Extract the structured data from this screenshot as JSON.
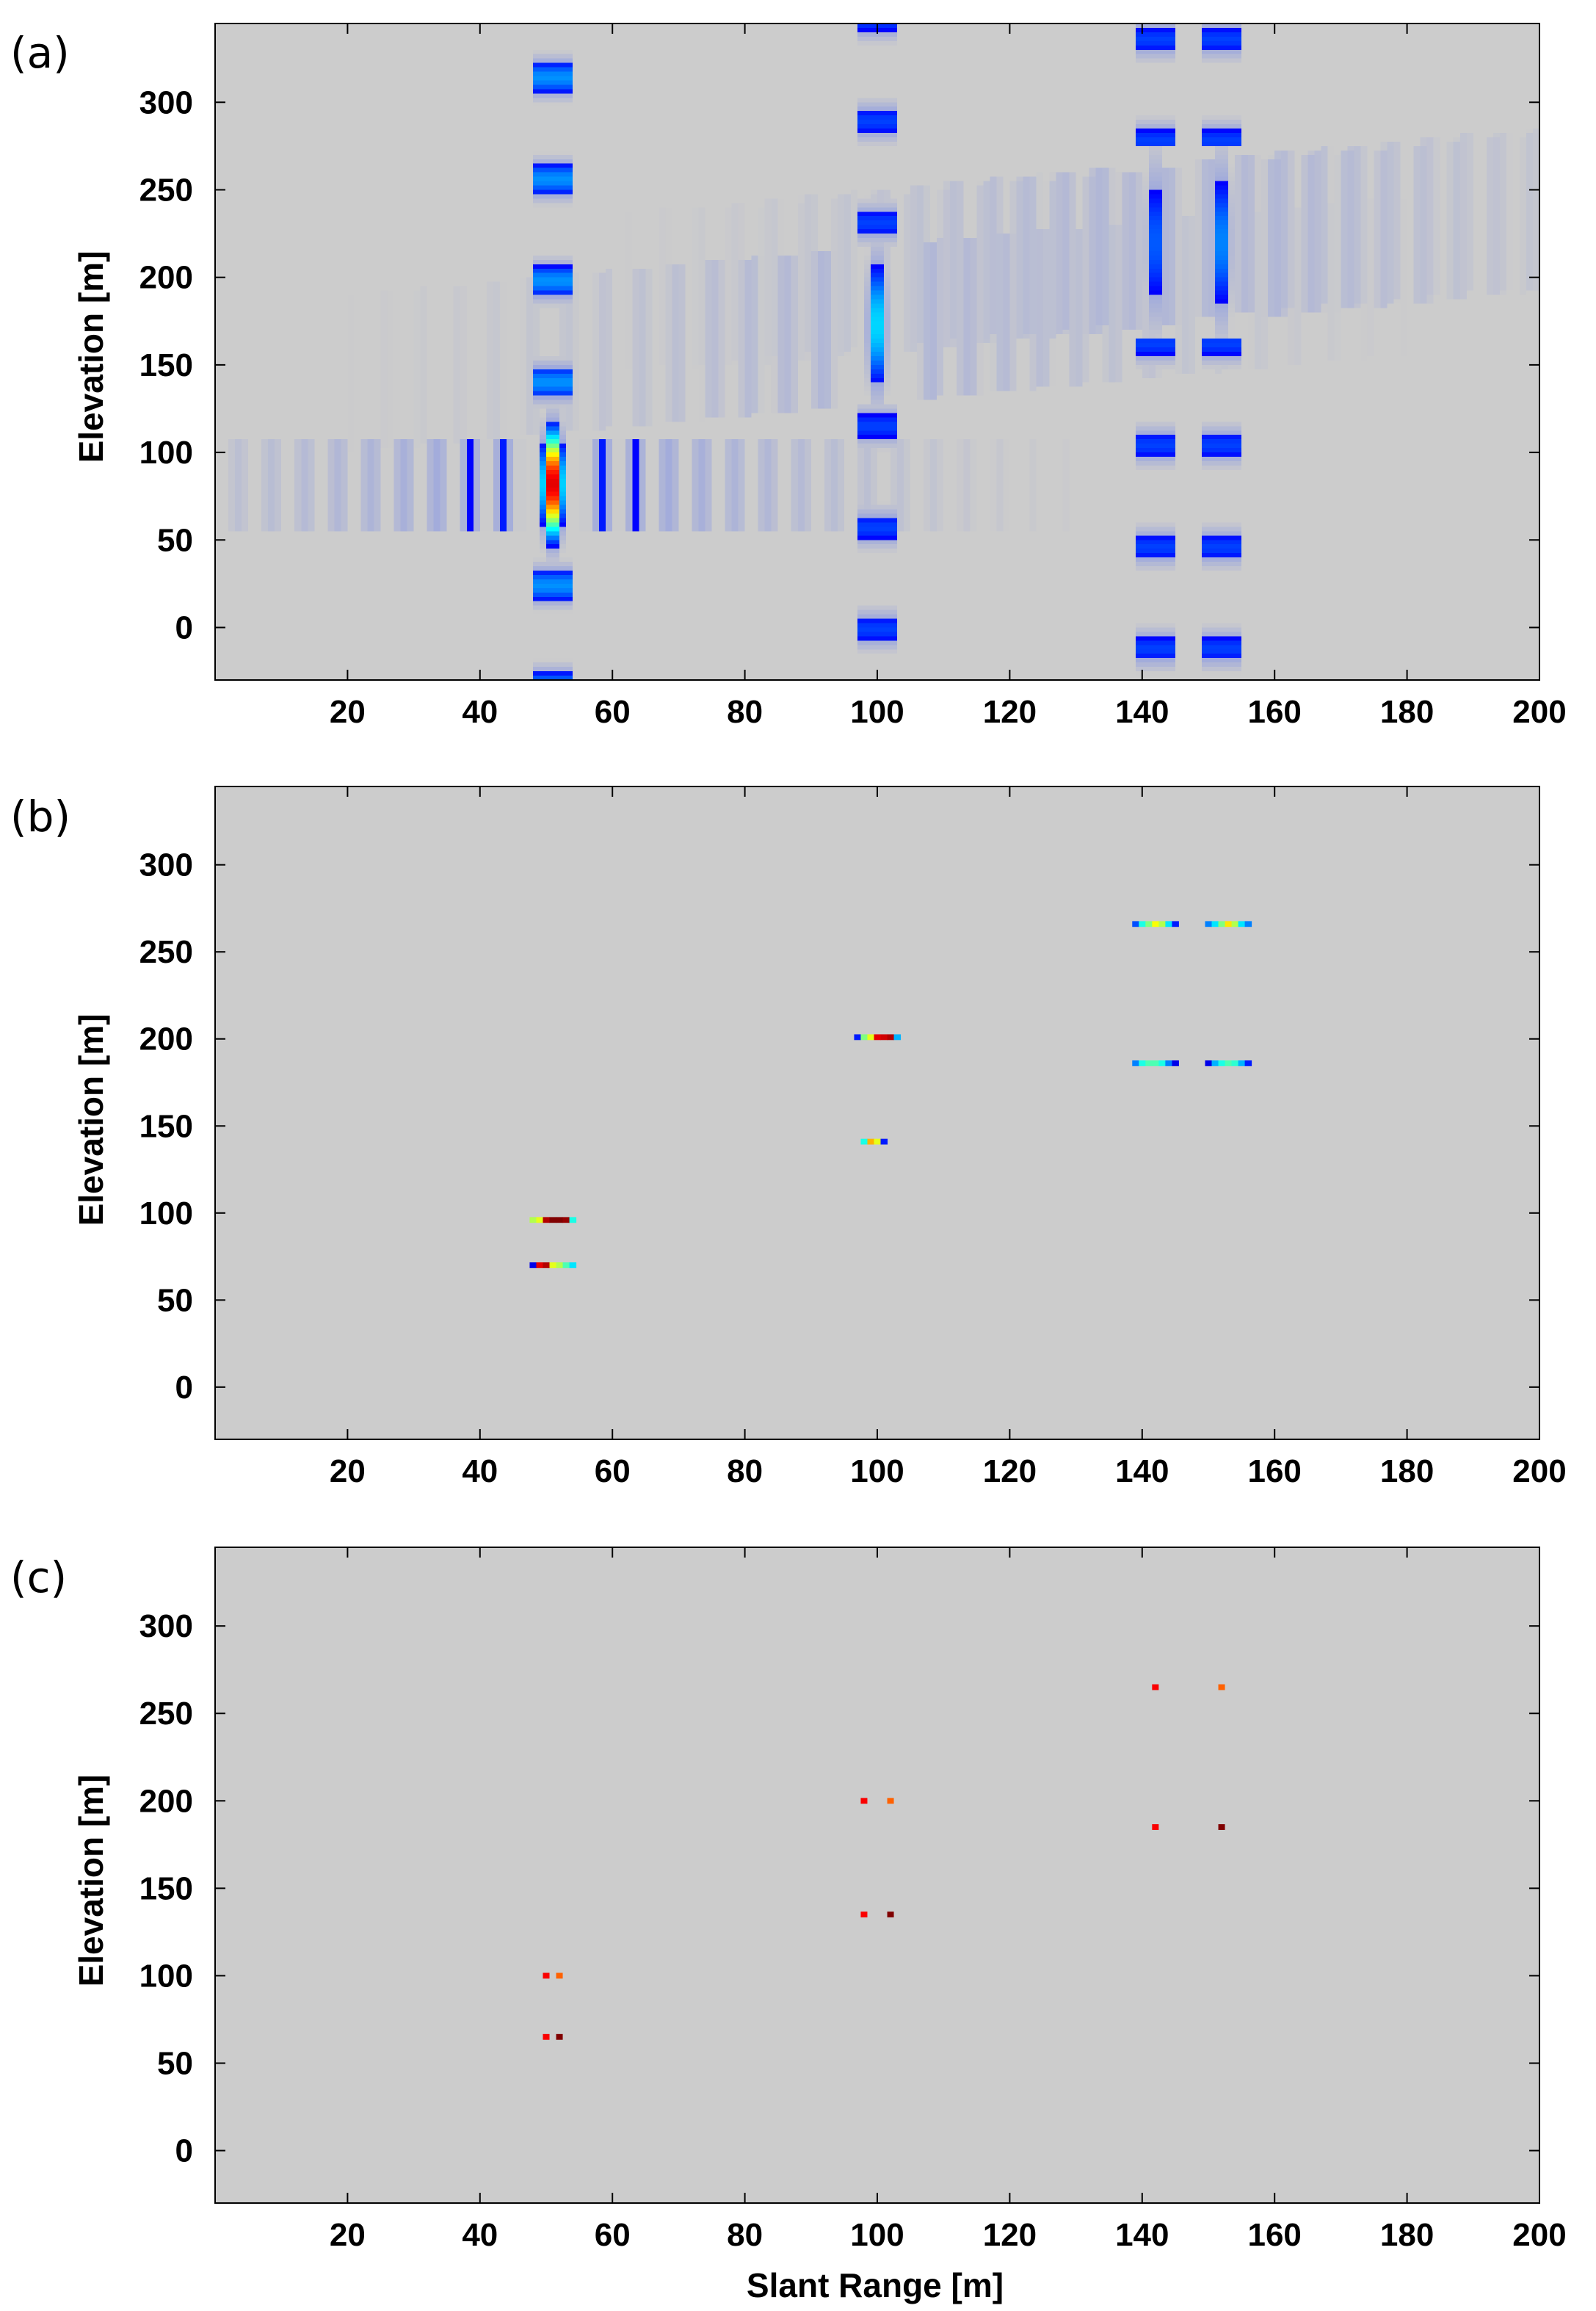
{
  "figure": {
    "background_color": "#ffffff",
    "plot_background_color": "#cccccc",
    "colormap": "jet",
    "colormap_stops": [
      "#00008f",
      "#0000ff",
      "#0080ff",
      "#00ffff",
      "#80ff80",
      "#ffff00",
      "#ff8000",
      "#ff0000",
      "#800000"
    ]
  },
  "chart_data": [
    {
      "panel_label": "(a)",
      "type": "heatmap",
      "xlabel": "",
      "ylabel": "Elevation [m]",
      "xlim": [
        0,
        200
      ],
      "ylim": [
        -30,
        345
      ],
      "xticks": [
        20,
        40,
        60,
        80,
        100,
        120,
        140,
        160,
        180,
        200
      ],
      "yticks": [
        0,
        50,
        100,
        150,
        200,
        250,
        300
      ],
      "xtick_labels": [
        "20",
        "40",
        "60",
        "80",
        "100",
        "120",
        "140",
        "160",
        "180",
        "200"
      ],
      "ytick_labels": [
        "0",
        "50",
        "100",
        "150",
        "200",
        "250",
        "300"
      ],
      "grid": false,
      "description": "tomographic point-spread responses (sidelobe pattern)",
      "point_responses": [
        {
          "x": 51,
          "y": 82,
          "peak": 1.0,
          "x_halfwidth": 3,
          "y_halfwidth": 32,
          "sidelobe_dir": "horizontal"
        },
        {
          "x": 100,
          "y": 173,
          "peak": 0.45,
          "x_halfwidth": 3,
          "y_halfwidth": 45,
          "sidelobe_dir": "diagonal"
        },
        {
          "x": 142,
          "y": 220,
          "peak": 0.33,
          "x_halfwidth": 3,
          "y_halfwidth": 55,
          "sidelobe_dir": "diagonal"
        },
        {
          "x": 152,
          "y": 220,
          "peak": 0.37,
          "x_halfwidth": 3,
          "y_halfwidth": 55,
          "sidelobe_dir": "diagonal"
        }
      ]
    },
    {
      "panel_label": "(b)",
      "type": "heatmap",
      "xlabel": "",
      "ylabel": "Elevation [m]",
      "xlim": [
        0,
        200
      ],
      "ylim": [
        -30,
        345
      ],
      "xticks": [
        20,
        40,
        60,
        80,
        100,
        120,
        140,
        160,
        180,
        200
      ],
      "yticks": [
        0,
        50,
        100,
        150,
        200,
        250,
        300
      ],
      "xtick_labels": [
        "20",
        "40",
        "60",
        "80",
        "100",
        "120",
        "140",
        "160",
        "180",
        "200"
      ],
      "ytick_labels": [
        "0",
        "50",
        "100",
        "150",
        "200",
        "250",
        "300"
      ],
      "grid": false,
      "description": "short horizontal segments of colored pixels (values along each segment)",
      "segments": [
        {
          "x_start": 47.5,
          "y": 96,
          "values": [
            0.55,
            0.6,
            0.95,
            1.0,
            1.0,
            0.98,
            0.4
          ]
        },
        {
          "x_start": 47.5,
          "y": 70,
          "values": [
            0.1,
            0.9,
            0.95,
            0.6,
            0.55,
            0.45,
            0.35
          ]
        },
        {
          "x_start": 96.5,
          "y": 201,
          "values": [
            0.15,
            0.5,
            0.6,
            0.9,
            0.92,
            0.95,
            0.3
          ]
        },
        {
          "x_start": 97.5,
          "y": 141,
          "values": [
            0.4,
            0.7,
            0.6,
            0.15
          ]
        },
        {
          "x_start": 138.5,
          "y": 266,
          "values": [
            0.2,
            0.4,
            0.5,
            0.62,
            0.55,
            0.35,
            0.15
          ]
        },
        {
          "x_start": 149.5,
          "y": 266,
          "values": [
            0.25,
            0.35,
            0.5,
            0.65,
            0.55,
            0.35,
            0.25
          ]
        },
        {
          "x_start": 138.5,
          "y": 186,
          "values": [
            0.25,
            0.4,
            0.45,
            0.45,
            0.4,
            0.25,
            0.1
          ]
        },
        {
          "x_start": 149.5,
          "y": 186,
          "values": [
            0.1,
            0.3,
            0.4,
            0.45,
            0.42,
            0.3,
            0.15
          ]
        }
      ]
    },
    {
      "panel_label": "(c)",
      "type": "heatmap",
      "xlabel": "Slant Range [m]",
      "ylabel": "Elevation [m]",
      "xlim": [
        0,
        200
      ],
      "ylim": [
        -30,
        345
      ],
      "xticks": [
        20,
        40,
        60,
        80,
        100,
        120,
        140,
        160,
        180,
        200
      ],
      "yticks": [
        0,
        50,
        100,
        150,
        200,
        250,
        300
      ],
      "xtick_labels": [
        "20",
        "40",
        "60",
        "80",
        "100",
        "120",
        "140",
        "160",
        "180",
        "200"
      ],
      "ytick_labels": [
        "0",
        "50",
        "100",
        "150",
        "200",
        "250",
        "300"
      ],
      "grid": false,
      "description": "detected point scatterers",
      "points": [
        {
          "x": 50,
          "y": 100,
          "value": 0.88
        },
        {
          "x": 52,
          "y": 100,
          "value": 0.78
        },
        {
          "x": 50,
          "y": 65,
          "value": 0.88
        },
        {
          "x": 52,
          "y": 65,
          "value": 1.0
        },
        {
          "x": 98,
          "y": 200,
          "value": 0.88
        },
        {
          "x": 102,
          "y": 200,
          "value": 0.78
        },
        {
          "x": 98,
          "y": 135,
          "value": 0.88
        },
        {
          "x": 102,
          "y": 135,
          "value": 1.0
        },
        {
          "x": 142,
          "y": 265,
          "value": 0.88
        },
        {
          "x": 152,
          "y": 265,
          "value": 0.78
        },
        {
          "x": 142,
          "y": 185,
          "value": 0.88
        },
        {
          "x": 152,
          "y": 185,
          "value": 1.0
        }
      ]
    }
  ]
}
